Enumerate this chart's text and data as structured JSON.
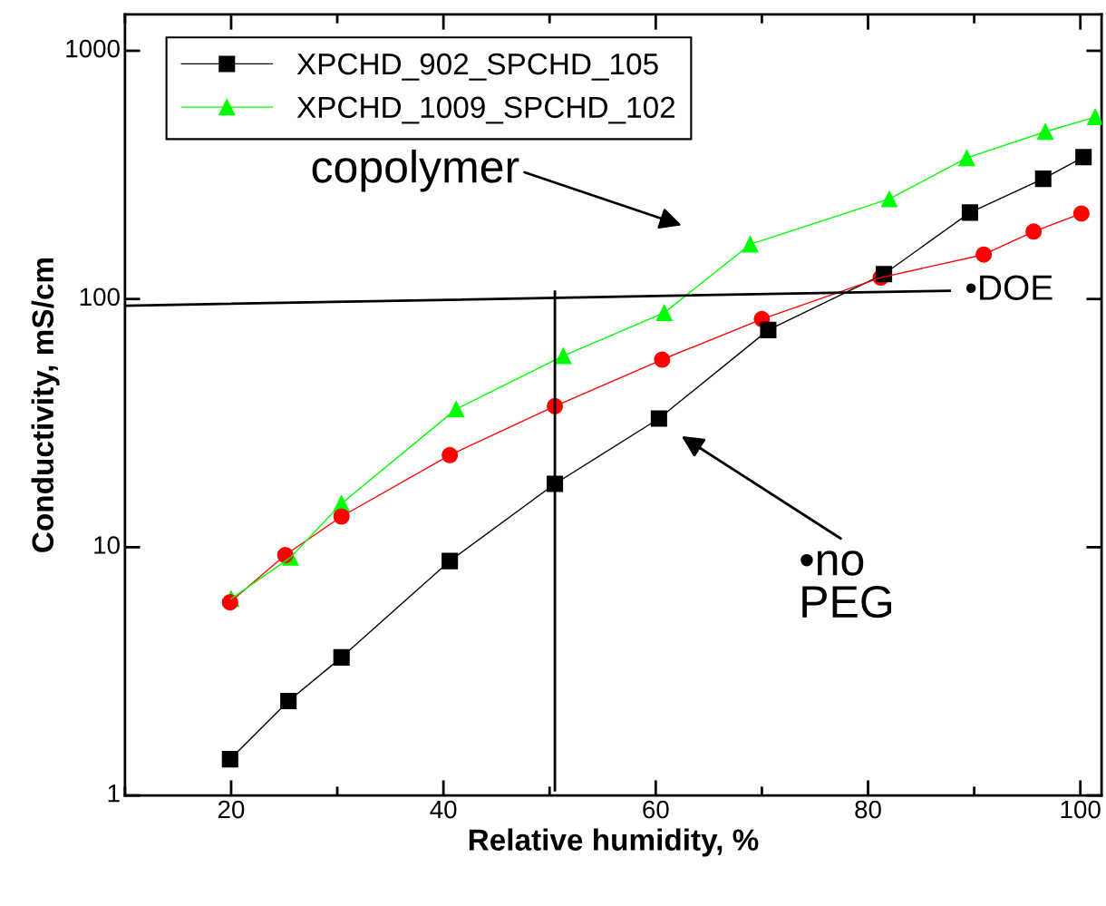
{
  "chart_data": {
    "type": "line",
    "xlabel": "Relative humidity, %",
    "ylabel": "Conductivity, mS/cm",
    "log": "y",
    "xlim": [
      10,
      102
    ],
    "ylim": [
      1,
      1400
    ],
    "xticks": [
      20,
      40,
      60,
      80,
      100
    ],
    "yticks": [
      1,
      10,
      100,
      1000
    ],
    "grid": false,
    "legend": "top left",
    "line_style": "solid",
    "series": [
      {
        "name": "XPCHD_902_SPCHD_105",
        "color": "#000000",
        "marker": "square",
        "x": [
          19.9,
          25.4,
          30.4,
          40.6,
          50.5,
          60.3,
          70.6,
          81.5,
          89.6,
          96.5,
          100.3
        ],
        "values": [
          1.4,
          2.4,
          3.6,
          8.8,
          18,
          33,
          75,
          126,
          223,
          305,
          373
        ]
      },
      {
        "color": "#ff0000",
        "marker": "circle",
        "x": [
          19.9,
          25.1,
          30.4,
          40.6,
          50.5,
          60.6,
          70.0,
          81.2,
          90.9,
          95.6,
          100.1
        ],
        "values": [
          6.0,
          9.3,
          13.3,
          23.5,
          37,
          57,
          83,
          122,
          151,
          187,
          221
        ]
      },
      {
        "name": "XPCHD_1009_SPCHD_102",
        "color": "#00ff00",
        "marker": "triangle",
        "x": [
          20.0,
          25.6,
          30.4,
          41.2,
          51.3,
          60.8,
          68.9,
          82.0,
          89.3,
          96.7,
          101.4
        ],
        "values": [
          6.2,
          9.1,
          15,
          36,
          59,
          88,
          166,
          253,
          370,
          472,
          541
        ]
      },
      {
        "color": "#000000",
        "marker": "none",
        "x": [
          10,
          87.7
        ],
        "values": [
          94,
          108
        ]
      },
      {
        "color": "#000000",
        "marker": "none",
        "x": [
          50.5,
          50.5
        ],
        "values": [
          1.05,
          107
        ]
      }
    ],
    "annotations": [
      "copolymer",
      {
        "text": "•DOE",
        "x": 87.7,
        "y": 108
      },
      "•no\nPEG"
    ]
  }
}
